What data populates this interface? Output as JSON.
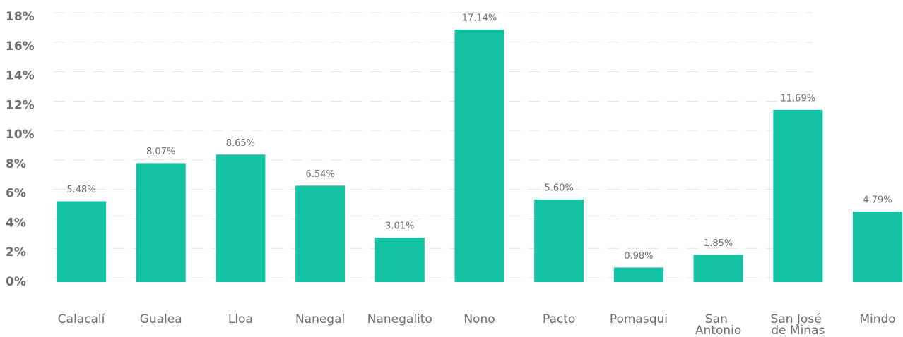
{
  "chart_data": {
    "type": "bar",
    "categories": [
      "Calacalí",
      "Gualea",
      "Lloa",
      "Nanegal",
      "Nanegalito",
      "Nono",
      "Pacto",
      "Pomasqui",
      "San Antonio",
      "San José de Minas",
      "Mindo"
    ],
    "values": [
      5.48,
      8.07,
      8.65,
      6.54,
      3.01,
      17.14,
      5.6,
      0.98,
      1.85,
      11.69,
      4.79
    ],
    "value_labels": [
      "5.48%",
      "8.07%",
      "8.65%",
      "6.54%",
      "3.01%",
      "17.14%",
      "5.60%",
      "0.98%",
      "1.85%",
      "11.69%",
      "4.79%"
    ],
    "color": "#13c2a3",
    "ylim": [
      0,
      18
    ],
    "yticks": [
      {
        "value": 0,
        "label": "0%"
      },
      {
        "value": 2,
        "label": "2%"
      },
      {
        "value": 4,
        "label": "4%"
      },
      {
        "value": 6,
        "label": "6%"
      },
      {
        "value": 8,
        "label": "8%"
      },
      {
        "value": 10,
        "label": "10%"
      },
      {
        "value": 12,
        "label": "12%"
      },
      {
        "value": 14,
        "label": "14%"
      },
      {
        "value": 16,
        "label": "16%"
      },
      {
        "value": 18,
        "label": "18%"
      }
    ],
    "grid": true
  }
}
